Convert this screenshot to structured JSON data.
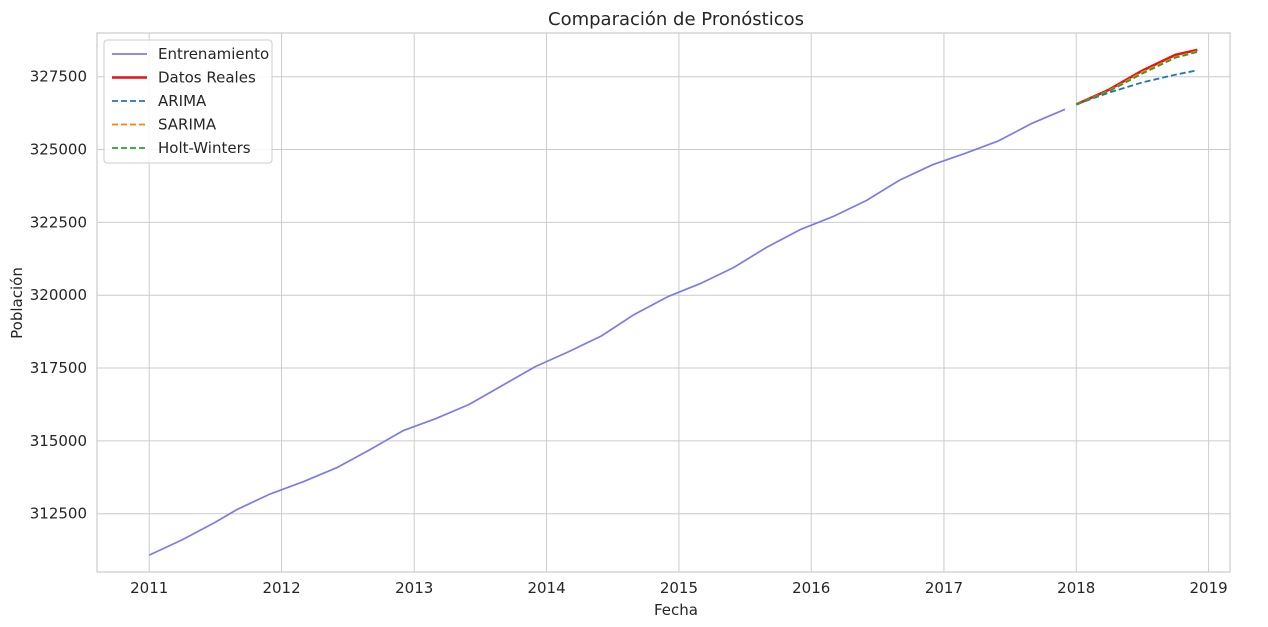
{
  "chart_data": {
    "type": "line",
    "title": "Comparación de Pronósticos",
    "xlabel": "Fecha",
    "ylabel": "Población",
    "xlim": [
      "2010-08-10",
      "2019-03-01"
    ],
    "ylim": [
      310500,
      329000
    ],
    "x_ticks": [
      "2011",
      "2012",
      "2013",
      "2014",
      "2015",
      "2016",
      "2017",
      "2018",
      "2019"
    ],
    "y_ticks": [
      312500,
      315000,
      317500,
      320000,
      322500,
      325000,
      327500
    ],
    "grid": true,
    "legend_position": "top-left",
    "series": [
      {
        "name": "Entrenamiento",
        "color": "#7b7bf0",
        "style": "solid",
        "points": [
          [
            "2011-01-01",
            311080
          ],
          [
            "2011-04-01",
            311600
          ],
          [
            "2011-07-01",
            312200
          ],
          [
            "2011-09-01",
            312650
          ],
          [
            "2011-12-01",
            313180
          ],
          [
            "2012-03-01",
            313600
          ],
          [
            "2012-06-01",
            314080
          ],
          [
            "2012-09-01",
            314700
          ],
          [
            "2012-12-01",
            315350
          ],
          [
            "2013-03-01",
            315760
          ],
          [
            "2013-06-01",
            316250
          ],
          [
            "2013-09-01",
            316900
          ],
          [
            "2013-12-01",
            317550
          ],
          [
            "2014-03-01",
            318050
          ],
          [
            "2014-06-01",
            318600
          ],
          [
            "2014-09-01",
            319350
          ],
          [
            "2014-12-01",
            319950
          ],
          [
            "2015-03-01",
            320400
          ],
          [
            "2015-06-01",
            320950
          ],
          [
            "2015-09-01",
            321650
          ],
          [
            "2015-12-01",
            322250
          ],
          [
            "2016-03-01",
            322700
          ],
          [
            "2016-06-01",
            323250
          ],
          [
            "2016-09-01",
            323950
          ],
          [
            "2016-12-01",
            324480
          ],
          [
            "2017-03-01",
            324870
          ],
          [
            "2017-06-01",
            325300
          ],
          [
            "2017-09-01",
            325900
          ],
          [
            "2017-12-01",
            326380
          ]
        ]
      },
      {
        "name": "Datos Reales",
        "color": "#ee1111",
        "style": "solid",
        "points": [
          [
            "2018-01-01",
            326550
          ],
          [
            "2018-04-01",
            327050
          ],
          [
            "2018-07-01",
            327700
          ],
          [
            "2018-10-01",
            328250
          ],
          [
            "2018-12-01",
            328420
          ]
        ]
      },
      {
        "name": "ARIMA",
        "color": "#1f77b4",
        "style": "dashed",
        "points": [
          [
            "2018-01-01",
            326550
          ],
          [
            "2018-04-01",
            326950
          ],
          [
            "2018-07-01",
            327300
          ],
          [
            "2018-10-01",
            327570
          ],
          [
            "2018-12-01",
            327720
          ]
        ]
      },
      {
        "name": "SARIMA",
        "color": "#ff7f0e",
        "style": "dashed",
        "points": [
          [
            "2018-01-01",
            326550
          ],
          [
            "2018-04-01",
            327020
          ],
          [
            "2018-07-01",
            327650
          ],
          [
            "2018-10-01",
            328180
          ],
          [
            "2018-12-01",
            328380
          ]
        ]
      },
      {
        "name": "Holt-Winters",
        "color": "#2ca02c",
        "style": "dashed",
        "points": [
          [
            "2018-01-01",
            326550
          ],
          [
            "2018-04-01",
            327000
          ],
          [
            "2018-07-01",
            327600
          ],
          [
            "2018-10-01",
            328150
          ],
          [
            "2018-12-01",
            328350
          ]
        ]
      }
    ]
  }
}
